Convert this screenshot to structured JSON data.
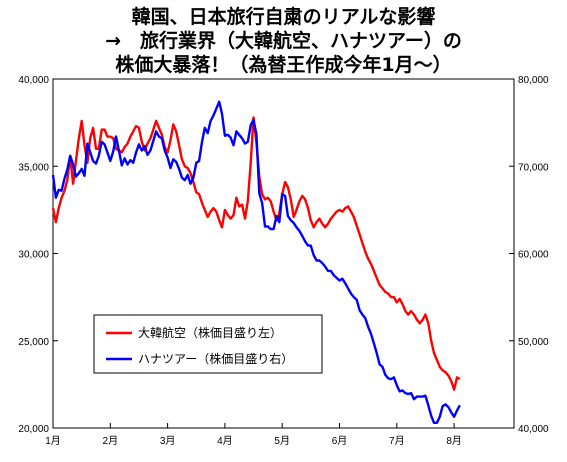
{
  "titles": {
    "line1": "韓国、日本旅行自粛のリアルな影響",
    "line2": "→　旅行業界（大韓航空、ハナツアー）の",
    "line3": "株価大暴落！（為替王作成今年1月～）"
  },
  "chart_data": {
    "type": "line",
    "x_labels": [
      "1月",
      "2月",
      "3月",
      "4月",
      "5月",
      "6月",
      "7月",
      "8月"
    ],
    "y_left": {
      "min": 20000,
      "max": 40000,
      "ticks": [
        "20,000",
        "25,000",
        "30,000",
        "35,000",
        "40,000"
      ]
    },
    "y_right": {
      "min": 40000,
      "max": 80000,
      "ticks": [
        "40,000",
        "50,000",
        "60,000",
        "70,000",
        "80,000"
      ]
    },
    "grid": false,
    "legend_position": "bottom-left inside",
    "series": [
      {
        "name": "大韓航空（株価目盛り左）",
        "axis": "left",
        "color": "#ff0000",
        "points": [
          [
            0.0,
            32600
          ],
          [
            0.05,
            31800
          ],
          [
            0.1,
            32600
          ],
          [
            0.15,
            33200
          ],
          [
            0.2,
            33600
          ],
          [
            0.25,
            34200
          ],
          [
            0.3,
            35600
          ],
          [
            0.35,
            34000
          ],
          [
            0.4,
            35300
          ],
          [
            0.45,
            36600
          ],
          [
            0.5,
            37600
          ],
          [
            0.55,
            36200
          ],
          [
            0.6,
            35200
          ],
          [
            0.65,
            36600
          ],
          [
            0.7,
            37200
          ],
          [
            0.75,
            36000
          ],
          [
            0.8,
            36000
          ],
          [
            0.85,
            37100
          ],
          [
            0.9,
            37100
          ],
          [
            0.95,
            36700
          ],
          [
            1.0,
            36700
          ],
          [
            1.05,
            36600
          ],
          [
            1.1,
            36000
          ],
          [
            1.15,
            35900
          ],
          [
            1.2,
            35800
          ],
          [
            1.25,
            36100
          ],
          [
            1.3,
            36300
          ],
          [
            1.35,
            36700
          ],
          [
            1.4,
            37000
          ],
          [
            1.45,
            37300
          ],
          [
            1.5,
            37200
          ],
          [
            1.55,
            36400
          ],
          [
            1.6,
            35900
          ],
          [
            1.65,
            36300
          ],
          [
            1.7,
            36600
          ],
          [
            1.75,
            37100
          ],
          [
            1.8,
            37600
          ],
          [
            1.85,
            37200
          ],
          [
            1.9,
            36800
          ],
          [
            1.95,
            36100
          ],
          [
            2.0,
            35800
          ],
          [
            2.05,
            36500
          ],
          [
            2.1,
            37400
          ],
          [
            2.15,
            37000
          ],
          [
            2.2,
            36200
          ],
          [
            2.25,
            35400
          ],
          [
            2.3,
            35000
          ],
          [
            2.35,
            34900
          ],
          [
            2.4,
            34600
          ],
          [
            2.45,
            34100
          ],
          [
            2.5,
            33500
          ],
          [
            2.55,
            33400
          ],
          [
            2.6,
            32900
          ],
          [
            2.65,
            32500
          ],
          [
            2.7,
            32100
          ],
          [
            2.75,
            32400
          ],
          [
            2.8,
            32600
          ],
          [
            2.85,
            32400
          ],
          [
            2.9,
            31900
          ],
          [
            2.95,
            31500
          ],
          [
            3.0,
            32500
          ],
          [
            3.05,
            32200
          ],
          [
            3.1,
            32000
          ],
          [
            3.15,
            32200
          ],
          [
            3.2,
            33200
          ],
          [
            3.25,
            32700
          ],
          [
            3.3,
            32800
          ],
          [
            3.35,
            32000
          ],
          [
            3.4,
            33000
          ],
          [
            3.45,
            35200
          ],
          [
            3.5,
            37800
          ],
          [
            3.55,
            36400
          ],
          [
            3.6,
            34400
          ],
          [
            3.65,
            33400
          ],
          [
            3.7,
            33100
          ],
          [
            3.75,
            33200
          ],
          [
            3.8,
            33000
          ],
          [
            3.85,
            32400
          ],
          [
            3.9,
            31900
          ],
          [
            3.95,
            32300
          ],
          [
            4.0,
            33400
          ],
          [
            4.05,
            34100
          ],
          [
            4.1,
            33800
          ],
          [
            4.15,
            33100
          ],
          [
            4.2,
            32100
          ],
          [
            4.25,
            32500
          ],
          [
            4.3,
            33000
          ],
          [
            4.35,
            33300
          ],
          [
            4.4,
            33100
          ],
          [
            4.45,
            32600
          ],
          [
            4.5,
            31900
          ],
          [
            4.55,
            31500
          ],
          [
            4.6,
            31800
          ],
          [
            4.65,
            32000
          ],
          [
            4.7,
            31700
          ],
          [
            4.75,
            31500
          ],
          [
            4.8,
            31700
          ],
          [
            4.85,
            32000
          ],
          [
            4.9,
            32200
          ],
          [
            4.95,
            32400
          ],
          [
            5.0,
            32500
          ],
          [
            5.05,
            32400
          ],
          [
            5.1,
            32600
          ],
          [
            5.15,
            32700
          ],
          [
            5.2,
            32400
          ],
          [
            5.25,
            32100
          ],
          [
            5.3,
            31600
          ],
          [
            5.35,
            31100
          ],
          [
            5.4,
            30600
          ],
          [
            5.45,
            30100
          ],
          [
            5.5,
            29700
          ],
          [
            5.55,
            29400
          ],
          [
            5.6,
            29000
          ],
          [
            5.65,
            28600
          ],
          [
            5.7,
            28200
          ],
          [
            5.75,
            28000
          ],
          [
            5.8,
            27800
          ],
          [
            5.85,
            27700
          ],
          [
            5.9,
            27500
          ],
          [
            5.95,
            27500
          ],
          [
            6.0,
            27200
          ],
          [
            6.05,
            27400
          ],
          [
            6.1,
            27100
          ],
          [
            6.15,
            26700
          ],
          [
            6.2,
            26500
          ],
          [
            6.25,
            26700
          ],
          [
            6.3,
            26500
          ],
          [
            6.35,
            26200
          ],
          [
            6.4,
            26000
          ],
          [
            6.45,
            26200
          ],
          [
            6.5,
            26500
          ],
          [
            6.55,
            26000
          ],
          [
            6.6,
            25000
          ],
          [
            6.65,
            24300
          ],
          [
            6.7,
            23900
          ],
          [
            6.75,
            23500
          ],
          [
            6.8,
            23300
          ],
          [
            6.85,
            23200
          ],
          [
            6.9,
            23000
          ],
          [
            6.95,
            22700
          ],
          [
            7.0,
            22200
          ],
          [
            7.05,
            22900
          ],
          [
            7.1,
            22800
          ]
        ]
      },
      {
        "name": "ハナツアー（株価目盛り右）",
        "axis": "right",
        "color": "#0000ff",
        "points": [
          [
            0.0,
            69000
          ],
          [
            0.05,
            66400
          ],
          [
            0.1,
            67300
          ],
          [
            0.15,
            67200
          ],
          [
            0.2,
            68600
          ],
          [
            0.25,
            69600
          ],
          [
            0.3,
            71200
          ],
          [
            0.35,
            70200
          ],
          [
            0.4,
            68800
          ],
          [
            0.45,
            69200
          ],
          [
            0.5,
            69700
          ],
          [
            0.55,
            68900
          ],
          [
            0.6,
            72600
          ],
          [
            0.65,
            71600
          ],
          [
            0.7,
            70600
          ],
          [
            0.75,
            70300
          ],
          [
            0.8,
            71200
          ],
          [
            0.85,
            72800
          ],
          [
            0.9,
            72500
          ],
          [
            0.95,
            71600
          ],
          [
            1.0,
            70600
          ],
          [
            1.05,
            71700
          ],
          [
            1.1,
            73400
          ],
          [
            1.15,
            71800
          ],
          [
            1.2,
            70100
          ],
          [
            1.25,
            70900
          ],
          [
            1.3,
            70200
          ],
          [
            1.35,
            70700
          ],
          [
            1.4,
            70400
          ],
          [
            1.45,
            71600
          ],
          [
            1.5,
            72500
          ],
          [
            1.55,
            71800
          ],
          [
            1.6,
            72300
          ],
          [
            1.65,
            71300
          ],
          [
            1.7,
            71800
          ],
          [
            1.75,
            72900
          ],
          [
            1.8,
            74000
          ],
          [
            1.85,
            73400
          ],
          [
            1.9,
            73200
          ],
          [
            1.95,
            71800
          ],
          [
            2.0,
            71000
          ],
          [
            2.05,
            69800
          ],
          [
            2.1,
            70800
          ],
          [
            2.15,
            70500
          ],
          [
            2.2,
            69700
          ],
          [
            2.25,
            68700
          ],
          [
            2.3,
            68400
          ],
          [
            2.35,
            69000
          ],
          [
            2.4,
            68000
          ],
          [
            2.45,
            68700
          ],
          [
            2.5,
            70400
          ],
          [
            2.55,
            70600
          ],
          [
            2.6,
            72800
          ],
          [
            2.65,
            74400
          ],
          [
            2.7,
            73800
          ],
          [
            2.75,
            75200
          ],
          [
            2.8,
            75800
          ],
          [
            2.85,
            76600
          ],
          [
            2.9,
            77400
          ],
          [
            2.95,
            76000
          ],
          [
            3.0,
            73500
          ],
          [
            3.05,
            73600
          ],
          [
            3.1,
            73300
          ],
          [
            3.15,
            72400
          ],
          [
            3.2,
            74000
          ],
          [
            3.25,
            73600
          ],
          [
            3.3,
            73200
          ],
          [
            3.35,
            72600
          ],
          [
            3.4,
            72800
          ],
          [
            3.45,
            74700
          ],
          [
            3.5,
            75300
          ],
          [
            3.55,
            73700
          ],
          [
            3.6,
            66900
          ],
          [
            3.65,
            65800
          ],
          [
            3.7,
            63100
          ],
          [
            3.75,
            63100
          ],
          [
            3.8,
            62800
          ],
          [
            3.85,
            62800
          ],
          [
            3.9,
            64300
          ],
          [
            3.95,
            63600
          ],
          [
            4.0,
            66800
          ],
          [
            4.05,
            66600
          ],
          [
            4.1,
            64300
          ],
          [
            4.15,
            63800
          ],
          [
            4.2,
            63500
          ],
          [
            4.25,
            63000
          ],
          [
            4.3,
            62600
          ],
          [
            4.35,
            62000
          ],
          [
            4.4,
            61400
          ],
          [
            4.45,
            60900
          ],
          [
            4.5,
            60900
          ],
          [
            4.55,
            59800
          ],
          [
            4.6,
            59200
          ],
          [
            4.65,
            59200
          ],
          [
            4.7,
            58900
          ],
          [
            4.75,
            58500
          ],
          [
            4.8,
            58000
          ],
          [
            4.85,
            58000
          ],
          [
            4.9,
            57500
          ],
          [
            4.95,
            57200
          ],
          [
            5.0,
            56900
          ],
          [
            5.05,
            57100
          ],
          [
            5.1,
            56600
          ],
          [
            5.15,
            56000
          ],
          [
            5.2,
            55400
          ],
          [
            5.25,
            55000
          ],
          [
            5.3,
            54700
          ],
          [
            5.35,
            53500
          ],
          [
            5.4,
            53000
          ],
          [
            5.45,
            52600
          ],
          [
            5.5,
            51600
          ],
          [
            5.55,
            50800
          ],
          [
            5.6,
            49700
          ],
          [
            5.65,
            48600
          ],
          [
            5.7,
            47300
          ],
          [
            5.75,
            47000
          ],
          [
            5.8,
            46100
          ],
          [
            5.85,
            45700
          ],
          [
            5.9,
            45600
          ],
          [
            5.95,
            45800
          ],
          [
            6.0,
            44900
          ],
          [
            6.05,
            44200
          ],
          [
            6.1,
            44300
          ],
          [
            6.15,
            44000
          ],
          [
            6.2,
            43900
          ],
          [
            6.25,
            44000
          ],
          [
            6.3,
            43300
          ],
          [
            6.35,
            43600
          ],
          [
            6.4,
            43600
          ],
          [
            6.45,
            43600
          ],
          [
            6.5,
            43700
          ],
          [
            6.55,
            42600
          ],
          [
            6.6,
            41400
          ],
          [
            6.65,
            40600
          ],
          [
            6.7,
            40600
          ],
          [
            6.75,
            41300
          ],
          [
            6.8,
            42500
          ],
          [
            6.85,
            42700
          ],
          [
            6.9,
            42400
          ],
          [
            6.95,
            41800
          ],
          [
            7.0,
            41300
          ],
          [
            7.05,
            42000
          ],
          [
            7.1,
            42600
          ]
        ]
      }
    ]
  }
}
